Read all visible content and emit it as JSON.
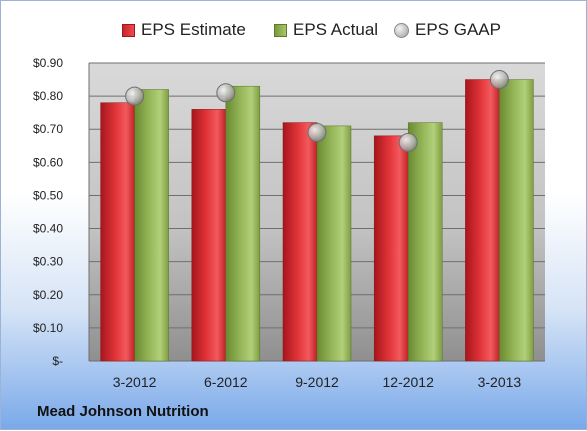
{
  "footer_text": "Mead Johnson Nutrition",
  "colors": {
    "estimate": "#d42a2f",
    "actual": "#8fb04f",
    "gaap": "#a8a8a8"
  },
  "icons": {
    "estimate": "red-square-marker",
    "actual": "green-square-marker",
    "gaap": "gray-circle-marker"
  },
  "chart_data": {
    "type": "bar",
    "title": "",
    "xlabel": "",
    "ylabel": "",
    "categories": [
      "3-2012",
      "6-2012",
      "9-2012",
      "12-2012",
      "3-2013"
    ],
    "series": [
      {
        "name": "EPS Estimate",
        "kind": "bar",
        "values": [
          0.78,
          0.76,
          0.72,
          0.68,
          0.85
        ]
      },
      {
        "name": "EPS Actual",
        "kind": "bar",
        "values": [
          0.82,
          0.83,
          0.71,
          0.72,
          0.85
        ]
      },
      {
        "name": "EPS GAAP",
        "kind": "scatter",
        "values": [
          0.8,
          0.81,
          0.69,
          0.66,
          0.85
        ]
      }
    ],
    "ylim": [
      0,
      0.9
    ],
    "yticks": [
      0,
      0.1,
      0.2,
      0.3,
      0.4,
      0.5,
      0.6,
      0.7,
      0.8,
      0.9
    ],
    "ytick_labels": [
      "$-",
      "$0.10",
      "$0.20",
      "$0.30",
      "$0.40",
      "$0.50",
      "$0.60",
      "$0.70",
      "$0.80",
      "$0.90"
    ],
    "grid": true,
    "legend_position": "top"
  }
}
